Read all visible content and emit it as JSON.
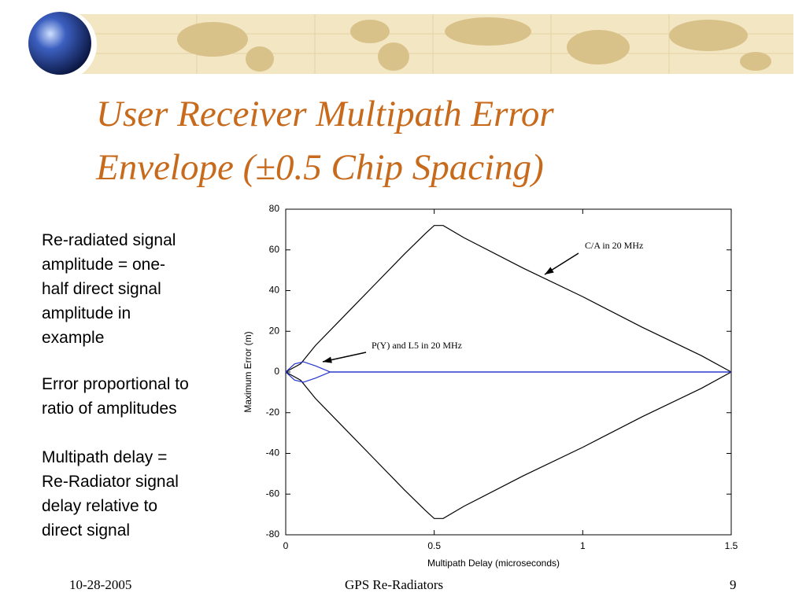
{
  "slide": {
    "title": [
      "User Receiver Multipath Error",
      "Envelope (±0.5 Chip Spacing)"
    ],
    "paragraphs": [
      [
        "Re-radiated signal",
        "amplitude = one-",
        "half direct signal",
        "amplitude in",
        "example"
      ],
      [
        "Error proportional to",
        "ratio of amplitudes"
      ],
      [
        "Multipath delay =",
        "Re-Radiator signal",
        "delay relative to",
        "direct signal"
      ]
    ],
    "footer": {
      "date": "10-28-2005",
      "center": "GPS Re-Radiators",
      "page": "9"
    }
  },
  "chart_data": {
    "type": "line",
    "xlabel": "Multipath Delay (microseconds)",
    "ylabel": "Maximum Error (m)",
    "xlim": [
      0,
      1.5
    ],
    "xticks": [
      0,
      0.5,
      1,
      1.5
    ],
    "ylim": [
      -80,
      80
    ],
    "yticks": [
      -80,
      -60,
      -40,
      -20,
      0,
      20,
      40,
      60,
      80
    ],
    "series": [
      {
        "color": "#000000",
        "x": [
          0,
          0.05,
          0.1,
          0.2,
          0.3,
          0.4,
          0.47,
          0.5,
          0.53,
          0.6,
          0.8,
          1.0,
          1.2,
          1.4,
          1.5
        ],
        "values": [
          0,
          4,
          13,
          28,
          43,
          58,
          68,
          72,
          72,
          66,
          51,
          37,
          22,
          8,
          0
        ]
      },
      {
        "color": "#000000",
        "x": [
          0,
          0.05,
          0.1,
          0.2,
          0.3,
          0.4,
          0.47,
          0.5,
          0.53,
          0.6,
          0.8,
          1.0,
          1.2,
          1.4,
          1.5
        ],
        "values": [
          0,
          -4,
          -13,
          -28,
          -43,
          -58,
          -68,
          -72,
          -72,
          -66,
          -51,
          -37,
          -22,
          -8,
          0
        ]
      },
      {
        "color": "#2233cc",
        "x": [
          0,
          0.03,
          0.06,
          0.1,
          0.15,
          1.5
        ],
        "values": [
          0,
          4,
          5,
          3,
          0,
          0
        ]
      },
      {
        "color": "#2233cc",
        "x": [
          0,
          0.03,
          0.06,
          0.1,
          0.15,
          1.5
        ],
        "values": [
          0,
          -4,
          -5,
          -3,
          0,
          0
        ]
      }
    ],
    "annotations": [
      "C/A in 20 MHz",
      "P(Y) and L5 in 20 MHz"
    ]
  }
}
